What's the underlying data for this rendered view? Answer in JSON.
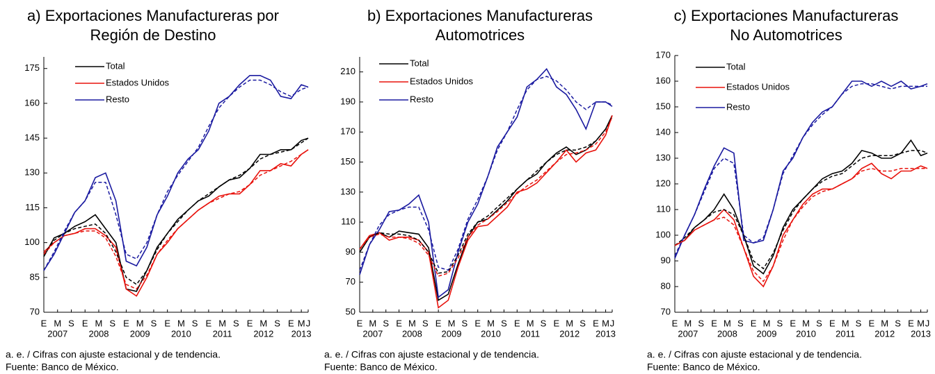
{
  "chart_data": [
    {
      "type": "line",
      "title": [
        "a) Exportaciones Manufactureras por",
        "Región de Destino"
      ],
      "note": "a. e. / Cifras con ajuste estacional y de tendencia.",
      "source": "Fuente: Banco de México.",
      "x": [
        0,
        3,
        6,
        9,
        12,
        15,
        18,
        21,
        24,
        27,
        30,
        33,
        36,
        39,
        42,
        45,
        48,
        51,
        54,
        57,
        60,
        63,
        66,
        69,
        72,
        75,
        77
      ],
      "xlim": [
        0,
        77
      ],
      "xticks": [
        {
          "value": 0,
          "label": "E"
        },
        {
          "value": 4,
          "label": "M"
        },
        {
          "value": 8,
          "label": "S"
        },
        {
          "value": 12,
          "label": "E"
        },
        {
          "value": 16,
          "label": "M"
        },
        {
          "value": 20,
          "label": "S"
        },
        {
          "value": 24,
          "label": "E"
        },
        {
          "value": 28,
          "label": "M"
        },
        {
          "value": 32,
          "label": "S"
        },
        {
          "value": 36,
          "label": "E"
        },
        {
          "value": 40,
          "label": "M"
        },
        {
          "value": 44,
          "label": "S"
        },
        {
          "value": 48,
          "label": "E"
        },
        {
          "value": 52,
          "label": "M"
        },
        {
          "value": 56,
          "label": "S"
        },
        {
          "value": 60,
          "label": "E"
        },
        {
          "value": 64,
          "label": "M"
        },
        {
          "value": 68,
          "label": "S"
        },
        {
          "value": 72,
          "label": "E"
        },
        {
          "value": 75,
          "label": "M"
        },
        {
          "value": 77,
          "label": "J"
        }
      ],
      "xgroups": [
        {
          "value": 4,
          "label": "2007"
        },
        {
          "value": 16,
          "label": "2008"
        },
        {
          "value": 28,
          "label": "2009"
        },
        {
          "value": 40,
          "label": "2010"
        },
        {
          "value": 52,
          "label": "2011"
        },
        {
          "value": 64,
          "label": "2012"
        },
        {
          "value": 75,
          "label": "2013"
        }
      ],
      "ylim": [
        70,
        180
      ],
      "yticks": [
        70,
        85,
        100,
        115,
        130,
        145,
        160,
        175
      ],
      "series": [
        {
          "name": "Total",
          "color": "#000000",
          "values": [
            94,
            102,
            104,
            107,
            109,
            112,
            106,
            100,
            80,
            79,
            88,
            98,
            104,
            110,
            114,
            118,
            120,
            124,
            127,
            128,
            132,
            138,
            138,
            140,
            140,
            144,
            145
          ]
        },
        {
          "name": "Estados Unidos",
          "color": "#e8120c",
          "values": [
            96,
            100,
            103,
            104,
            106,
            106,
            103,
            98,
            80,
            77,
            85,
            95,
            100,
            106,
            110,
            114,
            117,
            120,
            121,
            121,
            125,
            131,
            131,
            134,
            133,
            138,
            140
          ]
        },
        {
          "name": "Resto",
          "color": "#1a1aa0",
          "values": [
            88,
            95,
            104,
            113,
            118,
            128,
            130,
            118,
            92,
            90,
            98,
            112,
            120,
            130,
            136,
            140,
            148,
            160,
            163,
            168,
            172,
            172,
            170,
            163,
            162,
            168,
            167
          ]
        },
        {
          "color": "#000000",
          "dashed": true,
          "values": [
            95,
            101,
            104,
            106,
            107,
            108,
            104,
            96,
            85,
            82,
            88,
            97,
            104,
            109,
            114,
            118,
            121,
            124,
            127,
            129,
            132,
            136,
            138,
            139,
            140,
            143,
            145
          ]
        },
        {
          "color": "#e8120c",
          "dashed": true,
          "values": [
            95,
            100,
            103,
            104,
            105,
            105,
            102,
            94,
            82,
            80,
            86,
            95,
            101,
            106,
            110,
            114,
            117,
            119,
            121,
            122,
            125,
            129,
            131,
            133,
            135,
            138,
            140
          ]
        },
        {
          "color": "#1a1aa0",
          "dashed": true,
          "values": [
            88,
            96,
            105,
            113,
            118,
            126,
            126,
            112,
            95,
            93,
            100,
            112,
            122,
            129,
            135,
            141,
            150,
            158,
            163,
            167,
            170,
            170,
            168,
            165,
            163,
            166,
            167
          ]
        }
      ]
    },
    {
      "type": "line",
      "title": [
        "b) Exportaciones Manufactureras",
        "Automotrices"
      ],
      "note": "a. e. / Cifras con ajuste estacional y de tendencia.",
      "source": "Fuente: Banco de México.",
      "x": [
        0,
        3,
        6,
        9,
        12,
        15,
        18,
        21,
        24,
        27,
        30,
        33,
        36,
        39,
        42,
        45,
        48,
        51,
        54,
        57,
        60,
        63,
        66,
        69,
        72,
        75,
        77
      ],
      "xlim": [
        0,
        77
      ],
      "xticks": [
        {
          "value": 0,
          "label": "E"
        },
        {
          "value": 4,
          "label": "M"
        },
        {
          "value": 8,
          "label": "S"
        },
        {
          "value": 12,
          "label": "E"
        },
        {
          "value": 16,
          "label": "M"
        },
        {
          "value": 20,
          "label": "S"
        },
        {
          "value": 24,
          "label": "E"
        },
        {
          "value": 28,
          "label": "M"
        },
        {
          "value": 32,
          "label": "S"
        },
        {
          "value": 36,
          "label": "E"
        },
        {
          "value": 40,
          "label": "M"
        },
        {
          "value": 44,
          "label": "S"
        },
        {
          "value": 48,
          "label": "E"
        },
        {
          "value": 52,
          "label": "M"
        },
        {
          "value": 56,
          "label": "S"
        },
        {
          "value": 60,
          "label": "E"
        },
        {
          "value": 64,
          "label": "M"
        },
        {
          "value": 68,
          "label": "S"
        },
        {
          "value": 72,
          "label": "E"
        },
        {
          "value": 75,
          "label": "M"
        },
        {
          "value": 77,
          "label": "J"
        }
      ],
      "xgroups": [
        {
          "value": 4,
          "label": "2007"
        },
        {
          "value": 16,
          "label": "2008"
        },
        {
          "value": 28,
          "label": "2009"
        },
        {
          "value": 40,
          "label": "2010"
        },
        {
          "value": 52,
          "label": "2011"
        },
        {
          "value": 64,
          "label": "2012"
        },
        {
          "value": 75,
          "label": "2013"
        }
      ],
      "ylim": [
        50,
        220
      ],
      "yticks": [
        50,
        70,
        90,
        110,
        130,
        150,
        170,
        190,
        210
      ],
      "series": [
        {
          "name": "Total",
          "color": "#000000",
          "values": [
            90,
            100,
            103,
            100,
            104,
            103,
            102,
            93,
            58,
            62,
            82,
            100,
            110,
            112,
            118,
            124,
            132,
            138,
            142,
            150,
            156,
            160,
            155,
            158,
            164,
            172,
            181
          ]
        },
        {
          "name": "Estados Unidos",
          "color": "#e8120c",
          "values": [
            92,
            101,
            103,
            98,
            100,
            100,
            98,
            90,
            53,
            58,
            80,
            98,
            107,
            108,
            114,
            120,
            130,
            132,
            136,
            143,
            150,
            158,
            150,
            156,
            158,
            168,
            181
          ]
        },
        {
          "name": "Resto",
          "color": "#1a1aa0",
          "values": [
            75,
            95,
            105,
            117,
            118,
            122,
            128,
            110,
            60,
            65,
            90,
            110,
            122,
            140,
            160,
            170,
            180,
            200,
            205,
            212,
            200,
            195,
            185,
            172,
            190,
            190,
            187
          ]
        },
        {
          "color": "#000000",
          "dashed": true,
          "values": [
            92,
            100,
            103,
            102,
            102,
            101,
            98,
            90,
            76,
            77,
            88,
            102,
            110,
            114,
            120,
            126,
            132,
            138,
            144,
            150,
            155,
            158,
            158,
            160,
            164,
            172,
            180
          ]
        },
        {
          "color": "#e8120c",
          "dashed": true,
          "values": [
            92,
            100,
            102,
            100,
            100,
            99,
            96,
            88,
            74,
            76,
            86,
            100,
            108,
            112,
            117,
            123,
            129,
            134,
            138,
            144,
            150,
            155,
            156,
            158,
            162,
            170,
            180
          ]
        },
        {
          "color": "#1a1aa0",
          "dashed": true,
          "values": [
            78,
            95,
            108,
            115,
            118,
            120,
            120,
            105,
            80,
            78,
            92,
            112,
            125,
            140,
            158,
            170,
            185,
            198,
            205,
            207,
            204,
            198,
            190,
            185,
            190,
            190,
            188
          ]
        }
      ]
    },
    {
      "type": "line",
      "title": [
        "c) Exportaciones Manufactureras",
        "No Automotrices"
      ],
      "note": "a. e. / Cifras con ajuste estacional y de tendencia.",
      "source": "Fuente: Banco de México.",
      "x": [
        0,
        3,
        6,
        9,
        12,
        15,
        18,
        21,
        24,
        27,
        30,
        33,
        36,
        39,
        42,
        45,
        48,
        51,
        54,
        57,
        60,
        63,
        66,
        69,
        72,
        75,
        77
      ],
      "xlim": [
        0,
        77
      ],
      "xticks": [
        {
          "value": 0,
          "label": "E"
        },
        {
          "value": 4,
          "label": "M"
        },
        {
          "value": 8,
          "label": "S"
        },
        {
          "value": 12,
          "label": "E"
        },
        {
          "value": 16,
          "label": "M"
        },
        {
          "value": 20,
          "label": "S"
        },
        {
          "value": 24,
          "label": "E"
        },
        {
          "value": 28,
          "label": "M"
        },
        {
          "value": 32,
          "label": "S"
        },
        {
          "value": 36,
          "label": "E"
        },
        {
          "value": 40,
          "label": "M"
        },
        {
          "value": 44,
          "label": "S"
        },
        {
          "value": 48,
          "label": "E"
        },
        {
          "value": 52,
          "label": "M"
        },
        {
          "value": 56,
          "label": "S"
        },
        {
          "value": 60,
          "label": "E"
        },
        {
          "value": 64,
          "label": "M"
        },
        {
          "value": 68,
          "label": "S"
        },
        {
          "value": 72,
          "label": "E"
        },
        {
          "value": 75,
          "label": "M"
        },
        {
          "value": 77,
          "label": "J"
        }
      ],
      "xgroups": [
        {
          "value": 4,
          "label": "2007"
        },
        {
          "value": 16,
          "label": "2008"
        },
        {
          "value": 28,
          "label": "2009"
        },
        {
          "value": 40,
          "label": "2010"
        },
        {
          "value": 52,
          "label": "2011"
        },
        {
          "value": 64,
          "label": "2012"
        },
        {
          "value": 75,
          "label": "2013"
        }
      ],
      "ylim": [
        70,
        170
      ],
      "yticks": [
        70,
        80,
        90,
        100,
        110,
        120,
        130,
        140,
        150,
        160,
        170
      ],
      "series": [
        {
          "name": "Total",
          "color": "#000000",
          "values": [
            96,
            98,
            103,
            106,
            110,
            116,
            110,
            100,
            88,
            85,
            92,
            103,
            110,
            114,
            118,
            122,
            124,
            125,
            128,
            133,
            132,
            130,
            130,
            132,
            137,
            131,
            132
          ]
        },
        {
          "name": "Estados Unidos",
          "color": "#e8120c",
          "values": [
            96,
            98,
            102,
            104,
            106,
            110,
            106,
            95,
            84,
            80,
            88,
            100,
            106,
            112,
            116,
            118,
            118,
            120,
            122,
            126,
            128,
            124,
            122,
            125,
            125,
            127,
            126
          ]
        },
        {
          "name": "Resto",
          "color": "#1a1aa0",
          "values": [
            91,
            100,
            108,
            118,
            127,
            134,
            132,
            98,
            97,
            98,
            110,
            125,
            130,
            138,
            144,
            148,
            150,
            155,
            160,
            160,
            158,
            160,
            158,
            160,
            157,
            158,
            159
          ]
        },
        {
          "color": "#000000",
          "dashed": true,
          "values": [
            96,
            99,
            103,
            106,
            109,
            110,
            108,
            100,
            90,
            87,
            93,
            102,
            109,
            114,
            118,
            121,
            123,
            124,
            127,
            130,
            131,
            131,
            131,
            132,
            133,
            133,
            132
          ]
        },
        {
          "color": "#e8120c",
          "dashed": true,
          "values": [
            96,
            98,
            102,
            104,
            106,
            107,
            104,
            95,
            86,
            82,
            88,
            98,
            106,
            111,
            115,
            117,
            118,
            120,
            122,
            125,
            126,
            125,
            125,
            126,
            126,
            126,
            126
          ]
        },
        {
          "color": "#1a1aa0",
          "dashed": true,
          "values": [
            92,
            100,
            108,
            117,
            126,
            130,
            128,
            100,
            97,
            99,
            110,
            124,
            131,
            138,
            143,
            147,
            150,
            155,
            158,
            159,
            159,
            158,
            157,
            158,
            158,
            158,
            158
          ]
        }
      ]
    }
  ]
}
